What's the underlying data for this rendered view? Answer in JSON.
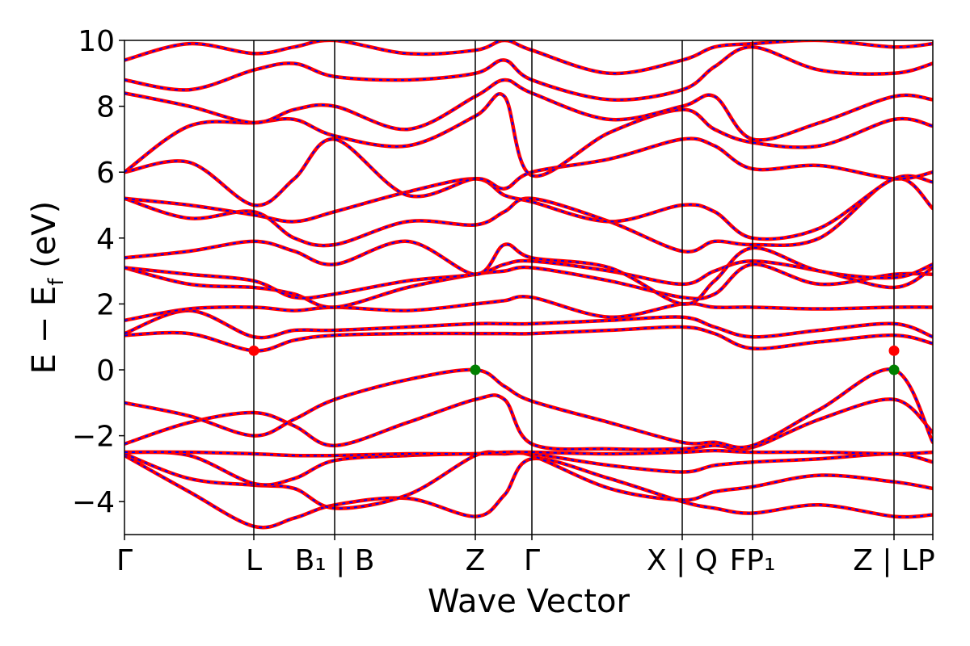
{
  "chart_data": {
    "type": "line",
    "title": "",
    "xlabel": "Wave Vector",
    "ylabel": "E − E_f (eV)",
    "ylabel_parts": {
      "main": "E − E",
      "sub": "f",
      "unit": " (eV)"
    },
    "ylim": [
      -5,
      10
    ],
    "yticks": [
      -4,
      -2,
      0,
      2,
      4,
      6,
      8,
      10
    ],
    "ytick_labels": [
      "−4",
      "−2",
      "0",
      "2",
      "4",
      "6",
      "8",
      "10"
    ],
    "grid": false,
    "legend": "none",
    "colors": {
      "dft": "#ff0000",
      "model": "#0000ff",
      "vbm": "#008000",
      "cbm": "#ff0000",
      "axes": "#000000"
    },
    "kpath": [
      {
        "x": 0.0,
        "label": "Γ"
      },
      {
        "x": 1.6,
        "label": "L"
      },
      {
        "x": 2.6,
        "label": "B₁ | B"
      },
      {
        "x": 4.34,
        "label": "Z"
      },
      {
        "x": 5.04,
        "label": "Γ"
      },
      {
        "x": 6.9,
        "label": "X | Q"
      },
      {
        "x": 7.77,
        "label": "FP₁"
      },
      {
        "x": 9.52,
        "label": "Z | LP"
      },
      {
        "x": 10.0,
        "label": ""
      }
    ],
    "xlim": [
      0.0,
      10.0
    ],
    "band_edges": {
      "vbm": [
        {
          "x": 4.34,
          "y": 0.0
        },
        {
          "x": 9.52,
          "y": 0.0
        }
      ],
      "cbm": [
        {
          "x": 1.6,
          "y": 0.58
        },
        {
          "x": 9.52,
          "y": 0.58
        }
      ]
    },
    "series": [
      {
        "x": [
          0.0,
          0.8,
          1.6,
          2.1,
          2.6,
          3.5,
          4.34,
          4.7,
          5.04,
          6.0,
          6.9,
          7.3,
          7.77,
          8.6,
          9.52,
          10.0
        ],
        "values": [
          -2.6,
          -3.7,
          -4.75,
          -4.5,
          -4.1,
          -3.9,
          -4.45,
          -3.8,
          -2.7,
          -3.3,
          -4.0,
          -4.2,
          -4.35,
          -4.1,
          -4.45,
          -4.4
        ]
      },
      {
        "x": [
          0.0,
          0.8,
          1.6,
          2.1,
          2.6,
          3.5,
          4.34,
          4.7,
          5.04,
          6.0,
          6.9,
          7.3,
          7.77,
          8.6,
          9.52,
          10.0
        ],
        "values": [
          -2.55,
          -3.3,
          -3.5,
          -3.6,
          -4.2,
          -3.8,
          -2.6,
          -2.55,
          -2.6,
          -3.6,
          -3.95,
          -3.7,
          -3.55,
          -3.2,
          -3.4,
          -3.6
        ]
      },
      {
        "x": [
          0.0,
          0.8,
          1.6,
          2.1,
          2.6,
          3.5,
          4.34,
          4.7,
          5.04,
          6.0,
          6.9,
          7.3,
          7.77,
          8.6,
          9.52,
          10.0
        ],
        "values": [
          -2.5,
          -2.6,
          -3.45,
          -3.3,
          -2.75,
          -2.6,
          -2.55,
          -2.55,
          -2.55,
          -2.9,
          -3.1,
          -2.9,
          -2.8,
          -2.7,
          -2.55,
          -2.8
        ]
      },
      {
        "x": [
          0.0,
          0.8,
          1.6,
          2.1,
          2.6,
          3.5,
          4.34,
          4.7,
          5.04,
          6.0,
          6.9,
          7.3,
          7.77,
          8.6,
          9.52,
          10.0
        ],
        "values": [
          -2.5,
          -2.5,
          -2.55,
          -2.6,
          -2.6,
          -2.55,
          -2.55,
          -2.5,
          -2.5,
          -2.55,
          -2.5,
          -2.45,
          -2.5,
          -2.5,
          -2.55,
          -2.5
        ]
      },
      {
        "x": [
          0.0,
          0.8,
          1.6,
          2.1,
          2.6,
          3.5,
          4.34,
          4.7,
          5.04,
          6.0,
          6.9,
          7.3,
          7.77,
          8.6,
          9.52,
          10.0
        ],
        "values": [
          -2.25,
          -1.6,
          -1.3,
          -1.7,
          -2.3,
          -1.6,
          -0.9,
          -0.9,
          -2.25,
          -2.4,
          -2.4,
          -2.3,
          -2.35,
          -1.5,
          -0.9,
          -1.9
        ]
      },
      {
        "x": [
          0.0,
          0.8,
          1.6,
          2.1,
          2.6,
          3.5,
          4.34,
          4.7,
          5.04,
          6.0,
          6.9,
          7.3,
          7.77,
          8.6,
          9.52,
          10.0
        ],
        "values": [
          -1.0,
          -1.4,
          -2.0,
          -1.5,
          -0.9,
          -0.3,
          0.0,
          -0.5,
          -0.95,
          -1.6,
          -2.2,
          -2.2,
          -2.3,
          -1.2,
          0.0,
          -2.2
        ]
      },
      {
        "x": [
          0.0,
          0.8,
          1.6,
          2.1,
          2.6,
          3.5,
          4.34,
          4.7,
          5.04,
          6.0,
          6.9,
          7.3,
          7.77,
          8.6,
          9.52,
          10.0
        ],
        "values": [
          1.05,
          1.1,
          0.58,
          0.9,
          1.05,
          1.1,
          1.1,
          1.1,
          1.1,
          1.2,
          1.3,
          1.1,
          0.65,
          0.85,
          1.05,
          0.8
        ]
      },
      {
        "x": [
          0.0,
          0.8,
          1.6,
          2.1,
          2.6,
          3.5,
          4.34,
          4.7,
          5.04,
          6.0,
          6.9,
          7.3,
          7.77,
          8.6,
          9.52,
          10.0
        ],
        "values": [
          1.1,
          1.8,
          1.0,
          1.2,
          1.2,
          1.3,
          1.4,
          1.4,
          1.4,
          1.5,
          1.6,
          1.3,
          1.0,
          1.2,
          1.4,
          1.0
        ]
      },
      {
        "x": [
          0.0,
          0.8,
          1.6,
          2.1,
          2.6,
          3.5,
          4.34,
          4.7,
          5.04,
          6.0,
          6.9,
          7.3,
          7.77,
          8.6,
          9.52,
          10.0
        ],
        "values": [
          1.5,
          1.85,
          1.9,
          1.8,
          1.9,
          1.8,
          2.0,
          2.1,
          2.2,
          1.6,
          2.0,
          1.9,
          1.9,
          1.85,
          1.9,
          1.9
        ]
      },
      {
        "x": [
          0.0,
          0.8,
          1.6,
          2.1,
          2.6,
          3.5,
          4.34,
          4.7,
          5.04,
          6.0,
          6.9,
          7.3,
          7.77,
          8.6,
          9.52,
          10.0
        ],
        "values": [
          3.1,
          2.6,
          2.5,
          2.3,
          1.9,
          2.5,
          2.9,
          3.0,
          3.1,
          2.7,
          2.2,
          2.3,
          3.2,
          2.6,
          2.9,
          2.9
        ]
      },
      {
        "x": [
          0.0,
          0.8,
          1.6,
          2.1,
          2.6,
          3.5,
          4.34,
          4.7,
          5.04,
          6.0,
          6.9,
          7.3,
          7.77,
          8.6,
          9.52,
          10.0
        ],
        "values": [
          3.1,
          2.9,
          2.7,
          2.2,
          2.3,
          2.7,
          2.9,
          3.2,
          3.3,
          3.0,
          2.6,
          3.0,
          3.3,
          3.0,
          2.5,
          3.1
        ]
      },
      {
        "x": [
          0.0,
          0.8,
          1.6,
          2.1,
          2.6,
          3.5,
          4.34,
          4.7,
          5.04,
          6.0,
          6.9,
          7.3,
          7.77,
          8.6,
          9.52,
          10.0
        ],
        "values": [
          3.4,
          3.6,
          3.9,
          3.6,
          3.2,
          3.9,
          2.9,
          3.8,
          3.4,
          3.1,
          2.0,
          2.7,
          3.7,
          3.0,
          2.8,
          3.2
        ]
      },
      {
        "x": [
          0.0,
          0.8,
          1.6,
          2.1,
          2.6,
          3.5,
          4.34,
          4.7,
          5.04,
          6.0,
          6.9,
          7.3,
          7.77,
          8.6,
          9.52,
          10.0
        ],
        "values": [
          5.2,
          4.6,
          4.8,
          4.0,
          3.8,
          4.5,
          4.4,
          4.8,
          5.2,
          4.5,
          3.6,
          3.9,
          3.8,
          4.0,
          5.8,
          4.9
        ]
      },
      {
        "x": [
          0.0,
          0.8,
          1.6,
          2.1,
          2.6,
          3.5,
          4.34,
          4.7,
          5.04,
          6.0,
          6.9,
          7.3,
          7.77,
          8.6,
          9.52,
          10.0
        ],
        "values": [
          5.2,
          5.0,
          4.7,
          4.5,
          4.8,
          5.4,
          5.8,
          5.3,
          5.1,
          4.5,
          5.0,
          4.8,
          4.0,
          4.3,
          5.8,
          5.7
        ]
      },
      {
        "x": [
          0.0,
          0.8,
          1.6,
          2.1,
          2.6,
          3.5,
          4.34,
          4.7,
          5.04,
          6.0,
          6.9,
          7.3,
          7.77,
          8.6,
          9.52,
          10.0
        ],
        "values": [
          6.0,
          6.3,
          5.0,
          5.8,
          7.0,
          5.3,
          5.8,
          5.5,
          6.0,
          6.4,
          7.0,
          6.8,
          6.1,
          6.2,
          5.8,
          6.0
        ]
      },
      {
        "x": [
          0.0,
          0.8,
          1.6,
          2.1,
          2.6,
          3.5,
          4.34,
          4.7,
          5.04,
          6.0,
          6.9,
          7.3,
          7.77,
          8.6,
          9.52,
          10.0
        ],
        "values": [
          6.0,
          7.4,
          7.5,
          7.6,
          7.1,
          6.8,
          7.7,
          8.3,
          5.9,
          7.2,
          7.9,
          7.3,
          6.9,
          6.8,
          7.6,
          7.4
        ]
      },
      {
        "x": [
          0.0,
          0.8,
          1.6,
          2.1,
          2.6,
          3.5,
          4.34,
          4.7,
          5.04,
          6.0,
          6.9,
          7.3,
          7.77,
          8.6,
          9.52,
          10.0
        ],
        "values": [
          8.4,
          8.0,
          7.5,
          7.9,
          8.0,
          7.3,
          8.3,
          8.8,
          8.4,
          7.6,
          8.0,
          8.3,
          7.0,
          7.5,
          8.3,
          8.2
        ]
      },
      {
        "x": [
          0.0,
          0.8,
          1.6,
          2.1,
          2.6,
          3.5,
          4.34,
          4.7,
          5.04,
          6.0,
          6.9,
          7.3,
          7.77,
          8.6,
          9.52,
          10.0
        ],
        "values": [
          8.8,
          8.5,
          9.1,
          9.3,
          8.9,
          8.8,
          9.0,
          9.4,
          8.8,
          8.2,
          8.5,
          9.2,
          9.8,
          9.1,
          9.0,
          9.3
        ]
      },
      {
        "x": [
          0.0,
          0.8,
          1.6,
          2.1,
          2.6,
          3.5,
          4.34,
          4.7,
          5.04,
          6.0,
          6.9,
          7.3,
          7.77,
          8.6,
          9.52,
          10.0
        ],
        "values": [
          9.4,
          9.9,
          9.6,
          9.8,
          10.0,
          9.6,
          9.7,
          10.0,
          9.7,
          9.0,
          9.4,
          9.8,
          9.9,
          10.0,
          9.8,
          9.9
        ]
      }
    ]
  }
}
